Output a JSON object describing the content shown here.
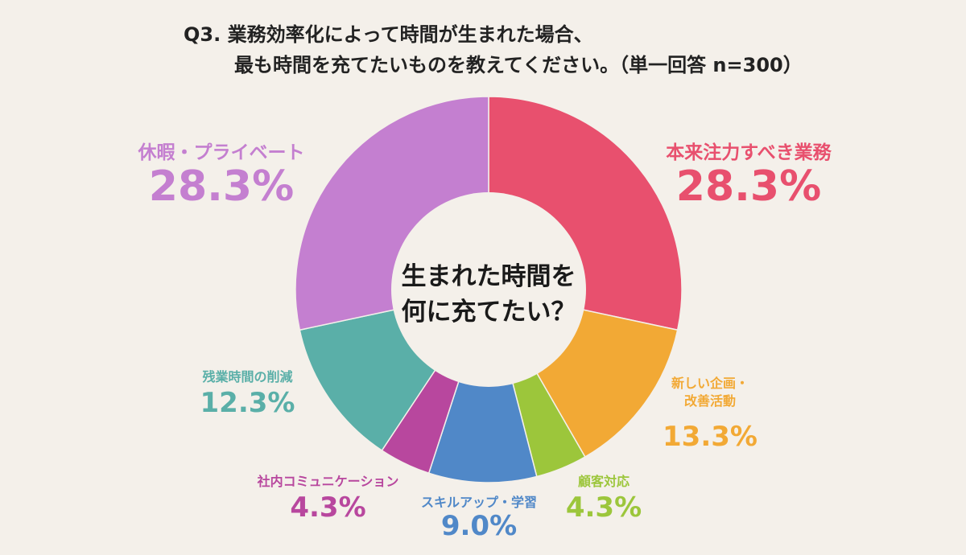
{
  "title": {
    "line1": "Q3. 業務効率化によって時間が生まれた場合、",
    "line2": "最も時間を充てたいものを教えてください。（単一回答 n=300）"
  },
  "center": {
    "line1": "生まれた時間を",
    "line2": "何に充てたい？"
  },
  "chart_data": {
    "type": "pie",
    "donut": true,
    "start_angle_deg": 0,
    "direction": "clockwise",
    "slices": [
      {
        "label": "本来注力すべき業務",
        "value": 28.3,
        "display": "28.3%",
        "color": "#e8506e"
      },
      {
        "label": "新しい企画・改善活動",
        "value": 13.3,
        "display": "13.3%",
        "color": "#f2a935"
      },
      {
        "label": "顧客対応",
        "value": 4.3,
        "display": "4.3%",
        "color": "#9cc63b"
      },
      {
        "label": "スキルアップ・学習",
        "value": 9.0,
        "display": "9.0%",
        "color": "#5088c8"
      },
      {
        "label": "社内コミュニケーション",
        "value": 4.3,
        "display": "4.3%",
        "color": "#b8479e"
      },
      {
        "label": "残業時間の削減",
        "value": 12.3,
        "display": "12.3%",
        "color": "#5aafa8"
      },
      {
        "label": "休暇・プライベート",
        "value": 28.3,
        "display": "28.3%",
        "color": "#c47fd0"
      }
    ],
    "label_lines": {
      "新しい企画・改善活動": [
        "新しい企画・",
        "改善活動"
      ]
    }
  }
}
